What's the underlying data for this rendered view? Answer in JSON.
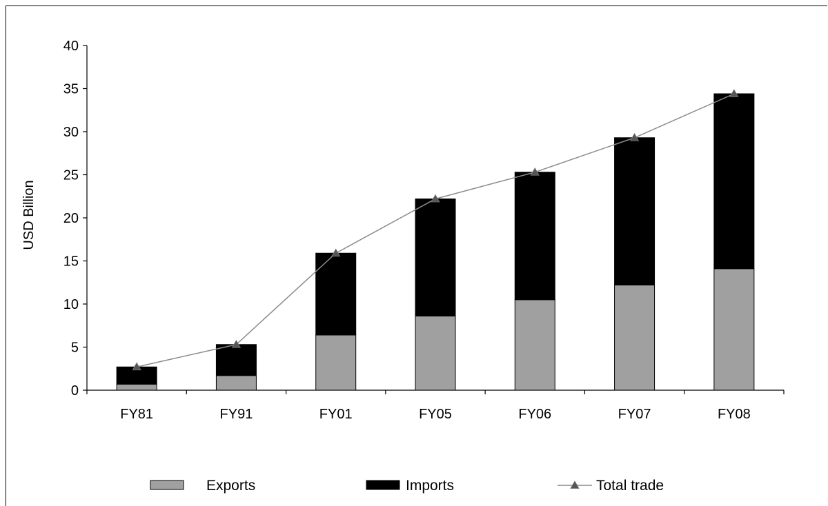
{
  "chart_data": {
    "type": "bar",
    "stacked": true,
    "title": "",
    "xlabel": "",
    "ylabel": "USD Billion",
    "ylim": [
      0,
      40
    ],
    "yticks": [
      0,
      5,
      10,
      15,
      20,
      25,
      30,
      35,
      40
    ],
    "grid": false,
    "legend_position": "bottom",
    "categories": [
      "FY81",
      "FY91",
      "FY01",
      "FY05",
      "FY06",
      "FY07",
      "FY08"
    ],
    "series": [
      {
        "name": "Exports",
        "type": "bar",
        "color": "#a0a0a0",
        "values": [
          0.7,
          1.7,
          6.4,
          8.6,
          10.5,
          12.2,
          14.1
        ]
      },
      {
        "name": "Imports",
        "type": "bar",
        "color": "#000000",
        "values": [
          2.0,
          3.6,
          9.5,
          13.6,
          14.8,
          17.1,
          20.3
        ]
      },
      {
        "name": "Total trade",
        "type": "line",
        "color": "#8c8c8c",
        "marker": "triangle",
        "values": [
          2.7,
          5.3,
          15.9,
          22.2,
          25.3,
          29.3,
          34.4
        ]
      }
    ]
  }
}
